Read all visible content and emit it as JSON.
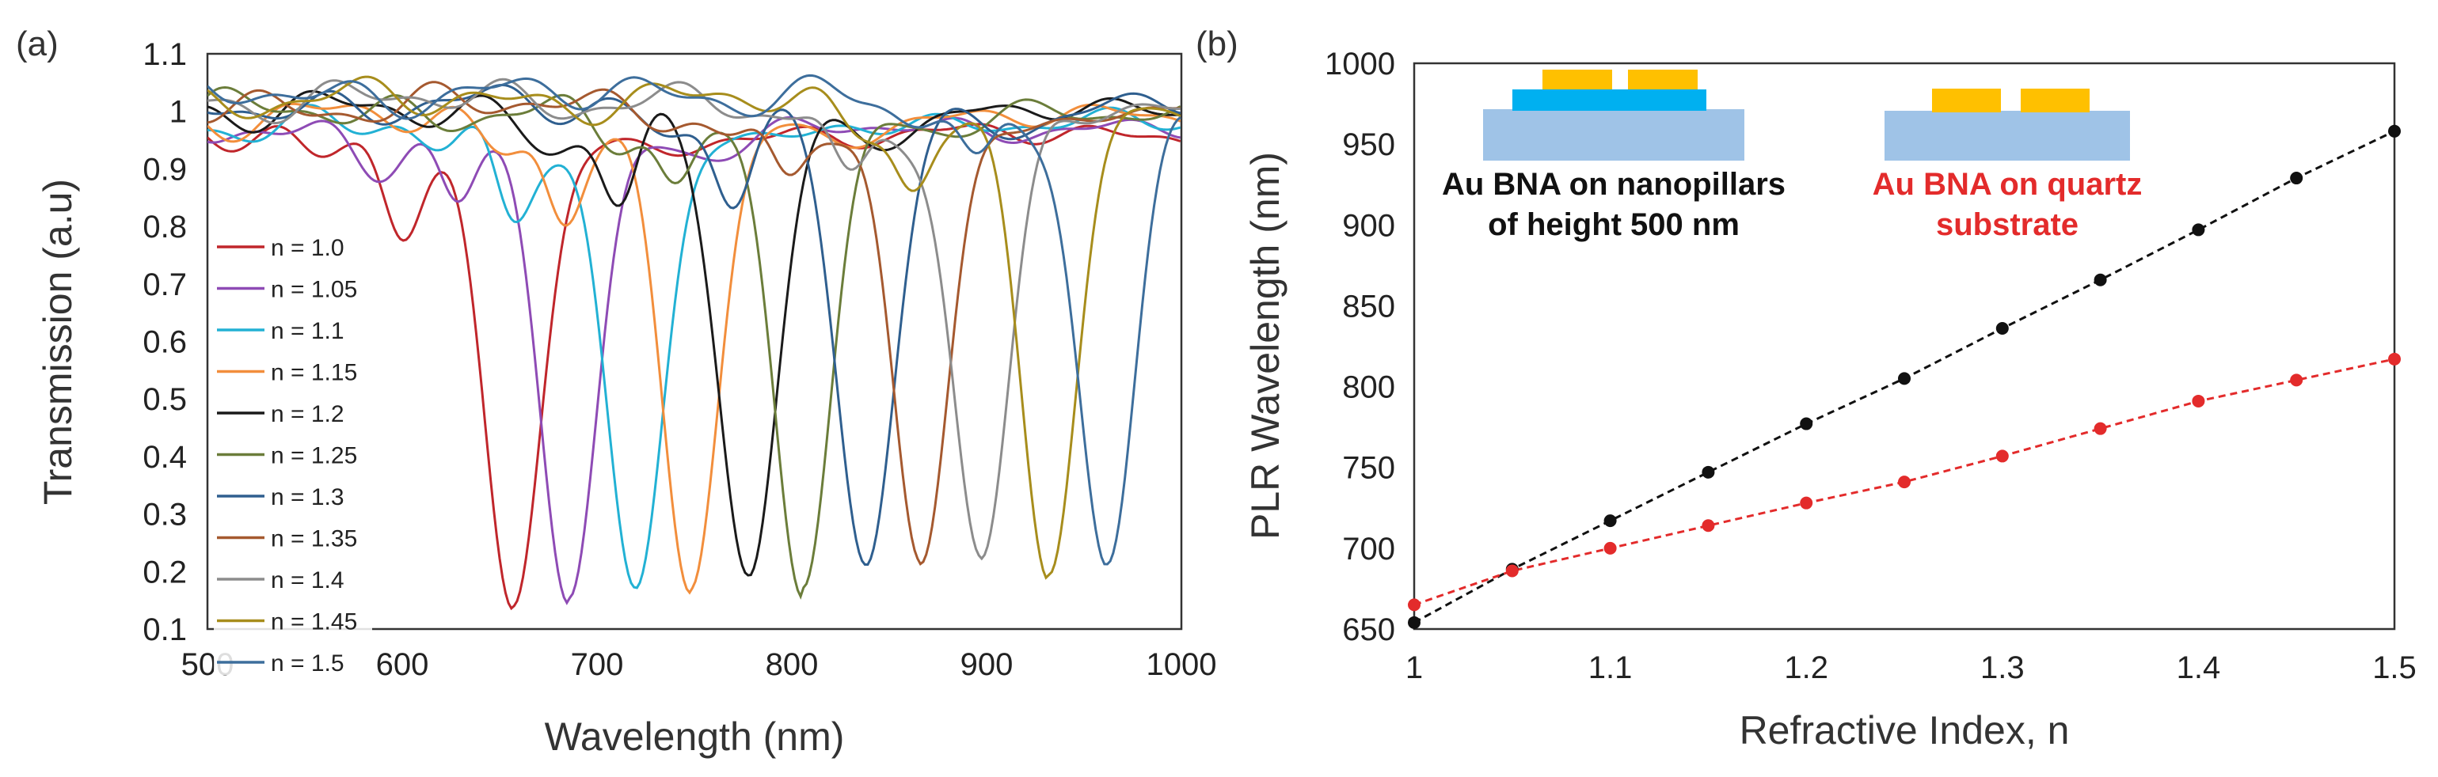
{
  "figure": {
    "panel_a_label": "(a)",
    "panel_b_label": "(b)"
  },
  "chart_data": [
    {
      "type": "line",
      "panel": "(a)",
      "title": "",
      "xlabel": "Wavelength (nm)",
      "ylabel": "Transmission (a.u)",
      "xlim": [
        500,
        1000
      ],
      "ylim": [
        0.1,
        1.1
      ],
      "xticks": [
        500,
        600,
        700,
        800,
        900,
        1000
      ],
      "yticks": [
        "0.1",
        "0.2",
        "0.3",
        "0.4",
        "0.5",
        "0.6",
        "0.7",
        "0.8",
        "0.9",
        "1",
        "1.1"
      ],
      "legend_position": "left",
      "series": [
        {
          "name": "n = 1.0",
          "color": "#c0262b",
          "dip_nm": 657,
          "min_T": 0.16,
          "fwhm_nm": 34,
          "edge": 0.96,
          "sec_nm": 600,
          "sec_depth": 0.12
        },
        {
          "name": "n = 1.05",
          "color": "#8e4bb5",
          "dip_nm": 686,
          "min_T": 0.18,
          "fwhm_nm": 34,
          "edge": 0.97,
          "sec_nm": 628,
          "sec_depth": 0.12
        },
        {
          "name": "n = 1.1",
          "color": "#22b1d4",
          "dip_nm": 720,
          "min_T": 0.18,
          "fwhm_nm": 34,
          "edge": 0.98,
          "sec_nm": 656,
          "sec_depth": 0.14
        },
        {
          "name": "n = 1.15",
          "color": "#f28e3c",
          "dip_nm": 748,
          "min_T": 0.19,
          "fwhm_nm": 34,
          "edge": 0.99,
          "sec_nm": 683,
          "sec_depth": 0.14
        },
        {
          "name": "n = 1.2",
          "color": "#1a1a1a",
          "dip_nm": 778,
          "min_T": 0.2,
          "fwhm_nm": 34,
          "edge": 1.0,
          "sec_nm": 712,
          "sec_depth": 0.14
        },
        {
          "name": "n = 1.25",
          "color": "#6b7d3a",
          "dip_nm": 806,
          "min_T": 0.21,
          "fwhm_nm": 34,
          "edge": 1.0,
          "sec_nm": 740,
          "sec_depth": 0.12
        },
        {
          "name": "n = 1.3",
          "color": "#2f5f8f",
          "dip_nm": 838,
          "min_T": 0.22,
          "fwhm_nm": 34,
          "edge": 1.01,
          "sec_nm": 770,
          "sec_depth": 0.12
        },
        {
          "name": "n = 1.35",
          "color": "#a5592f",
          "dip_nm": 866,
          "min_T": 0.22,
          "fwhm_nm": 34,
          "edge": 1.01,
          "sec_nm": 798,
          "sec_depth": 0.12
        },
        {
          "name": "n = 1.4",
          "color": "#8c8c8c",
          "dip_nm": 897,
          "min_T": 0.23,
          "fwhm_nm": 34,
          "edge": 1.02,
          "sec_nm": 830,
          "sec_depth": 0.12
        },
        {
          "name": "n = 1.45",
          "color": "#a78d1c",
          "dip_nm": 932,
          "min_T": 0.22,
          "fwhm_nm": 34,
          "edge": 1.02,
          "sec_nm": 862,
          "sec_depth": 0.12
        },
        {
          "name": "n = 1.5",
          "color": "#3d6e9c",
          "dip_nm": 962,
          "min_T": 0.23,
          "fwhm_nm": 34,
          "edge": 1.03,
          "sec_nm": 895,
          "sec_depth": 0.12
        }
      ]
    },
    {
      "type": "scatter",
      "panel": "(b)",
      "title": "",
      "xlabel": "Refractive Index, n",
      "ylabel": "PLR Wavelength (nm)",
      "xlim": [
        1.0,
        1.5
      ],
      "ylim": [
        650,
        1000
      ],
      "xticks": [
        "1",
        "1.1",
        "1.2",
        "1.3",
        "1.4",
        "1.5"
      ],
      "yticks": [
        "650",
        "700",
        "750",
        "800",
        "850",
        "900",
        "950",
        "1000"
      ],
      "x": [
        1.0,
        1.05,
        1.1,
        1.15,
        1.2,
        1.25,
        1.3,
        1.35,
        1.4,
        1.45,
        1.5
      ],
      "series": [
        {
          "name": "Au BNA on nanopillars of height 500 nm",
          "color": "#111111",
          "values": [
            654,
            687,
            717,
            747,
            777,
            805,
            836,
            866,
            897,
            929,
            958
          ]
        },
        {
          "name": "Au BNA on quartz substrate",
          "color": "#e32b2b",
          "values": [
            665,
            686,
            700,
            714,
            728,
            741,
            757,
            774,
            791,
            804,
            817
          ]
        }
      ],
      "annotations": {
        "nanopillar_line1": "Au BNA on nanopillars",
        "nanopillar_line2": "of height 500 nm",
        "quartz_line1": "Au BNA on quartz",
        "quartz_line2": "substrate"
      }
    }
  ]
}
